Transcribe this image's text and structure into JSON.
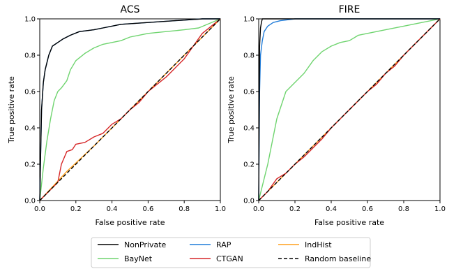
{
  "chart_data": [
    {
      "type": "line",
      "title": "ACS",
      "xlabel": "False positive rate",
      "ylabel": "True positive rate",
      "xlim": [
        0,
        1
      ],
      "ylim": [
        0,
        1
      ],
      "xticks": [
        "0.0",
        "0.2",
        "0.4",
        "0.6",
        "0.8",
        "1.0"
      ],
      "yticks": [
        "0.0",
        "0.2",
        "0.4",
        "0.6",
        "0.8",
        "1.0"
      ],
      "grid": false,
      "series": [
        {
          "name": "NonPrivate",
          "color": "#000000",
          "style": "solid",
          "points": [
            [
              0,
              0
            ],
            [
              0.01,
              0.5
            ],
            [
              0.02,
              0.65
            ],
            [
              0.03,
              0.72
            ],
            [
              0.05,
              0.8
            ],
            [
              0.07,
              0.85
            ],
            [
              0.1,
              0.87
            ],
            [
              0.13,
              0.89
            ],
            [
              0.17,
              0.91
            ],
            [
              0.22,
              0.93
            ],
            [
              0.3,
              0.94
            ],
            [
              0.35,
              0.95
            ],
            [
              0.45,
              0.97
            ],
            [
              0.6,
              0.98
            ],
            [
              0.75,
              0.99
            ],
            [
              0.9,
              1.0
            ],
            [
              1,
              1
            ]
          ]
        },
        {
          "name": "RAP",
          "color": "#1f7bd8",
          "style": "solid",
          "points": [
            [
              0,
              0
            ],
            [
              0.01,
              0.5
            ],
            [
              0.02,
              0.65
            ],
            [
              0.03,
              0.72
            ],
            [
              0.05,
              0.8
            ],
            [
              0.07,
              0.85
            ],
            [
              0.1,
              0.87
            ],
            [
              0.13,
              0.89
            ],
            [
              0.17,
              0.91
            ],
            [
              0.22,
              0.93
            ],
            [
              0.3,
              0.94
            ],
            [
              0.35,
              0.95
            ],
            [
              0.45,
              0.97
            ],
            [
              0.6,
              0.98
            ],
            [
              0.75,
              0.99
            ],
            [
              0.9,
              1.0
            ],
            [
              1,
              1
            ]
          ]
        },
        {
          "name": "IndHist",
          "color": "#ff9f1c",
          "style": "solid",
          "points": [
            [
              0,
              0
            ],
            [
              0.15,
              0.16
            ],
            [
              0.3,
              0.3
            ],
            [
              0.5,
              0.5
            ],
            [
              0.7,
              0.7
            ],
            [
              0.85,
              0.85
            ],
            [
              1,
              1
            ]
          ]
        },
        {
          "name": "BayNet",
          "color": "#6fd46f",
          "style": "solid",
          "points": [
            [
              0,
              0
            ],
            [
              0.02,
              0.18
            ],
            [
              0.04,
              0.33
            ],
            [
              0.06,
              0.45
            ],
            [
              0.08,
              0.55
            ],
            [
              0.1,
              0.6
            ],
            [
              0.12,
              0.62
            ],
            [
              0.15,
              0.66
            ],
            [
              0.17,
              0.72
            ],
            [
              0.2,
              0.77
            ],
            [
              0.25,
              0.81
            ],
            [
              0.3,
              0.84
            ],
            [
              0.35,
              0.86
            ],
            [
              0.4,
              0.87
            ],
            [
              0.45,
              0.88
            ],
            [
              0.5,
              0.9
            ],
            [
              0.55,
              0.91
            ],
            [
              0.6,
              0.92
            ],
            [
              0.7,
              0.93
            ],
            [
              0.8,
              0.94
            ],
            [
              0.88,
              0.95
            ],
            [
              1,
              1
            ]
          ]
        },
        {
          "name": "CTGAN",
          "color": "#d62728",
          "style": "solid",
          "points": [
            [
              0,
              0
            ],
            [
              0.05,
              0.05
            ],
            [
              0.1,
              0.1
            ],
            [
              0.12,
              0.2
            ],
            [
              0.15,
              0.27
            ],
            [
              0.18,
              0.28
            ],
            [
              0.2,
              0.31
            ],
            [
              0.25,
              0.32
            ],
            [
              0.3,
              0.35
            ],
            [
              0.35,
              0.37
            ],
            [
              0.4,
              0.42
            ],
            [
              0.45,
              0.45
            ],
            [
              0.5,
              0.5
            ],
            [
              0.55,
              0.54
            ],
            [
              0.6,
              0.6
            ],
            [
              0.65,
              0.64
            ],
            [
              0.7,
              0.68
            ],
            [
              0.75,
              0.73
            ],
            [
              0.8,
              0.78
            ],
            [
              0.85,
              0.85
            ],
            [
              0.9,
              0.92
            ],
            [
              0.95,
              0.96
            ],
            [
              1,
              1
            ]
          ]
        },
        {
          "name": "Random baseline",
          "color": "#000000",
          "style": "dashed",
          "points": [
            [
              0,
              0
            ],
            [
              1,
              1
            ]
          ]
        }
      ]
    },
    {
      "type": "line",
      "title": "FIRE",
      "xlabel": "False positive rate",
      "ylabel": "True positive rate",
      "xlim": [
        0,
        1
      ],
      "ylim": [
        0,
        1
      ],
      "xticks": [
        "0.0",
        "0.2",
        "0.4",
        "0.6",
        "0.8",
        "1.0"
      ],
      "yticks": [
        "0.0",
        "0.2",
        "0.4",
        "0.6",
        "0.8",
        "1.0"
      ],
      "grid": false,
      "series": [
        {
          "name": "NonPrivate",
          "color": "#000000",
          "style": "solid",
          "points": [
            [
              0,
              0
            ],
            [
              0.003,
              0.5
            ],
            [
              0.005,
              0.85
            ],
            [
              0.01,
              0.95
            ],
            [
              0.015,
              0.98
            ],
            [
              0.02,
              1.0
            ],
            [
              1,
              1
            ]
          ]
        },
        {
          "name": "RAP",
          "color": "#1f7bd8",
          "style": "solid",
          "points": [
            [
              0,
              0
            ],
            [
              0.005,
              0.6
            ],
            [
              0.01,
              0.8
            ],
            [
              0.02,
              0.88
            ],
            [
              0.03,
              0.93
            ],
            [
              0.05,
              0.96
            ],
            [
              0.08,
              0.98
            ],
            [
              0.12,
              0.99
            ],
            [
              0.2,
              1.0
            ],
            [
              1,
              1
            ]
          ]
        },
        {
          "name": "IndHist",
          "color": "#ff9f1c",
          "style": "solid",
          "points": [
            [
              0,
              0
            ],
            [
              0.1,
              0.1
            ],
            [
              0.2,
              0.2
            ],
            [
              0.3,
              0.3
            ],
            [
              0.4,
              0.4
            ],
            [
              0.5,
              0.5
            ],
            [
              0.6,
              0.6
            ],
            [
              0.7,
              0.7
            ],
            [
              0.8,
              0.8
            ],
            [
              0.9,
              0.9
            ],
            [
              1,
              1
            ]
          ]
        },
        {
          "name": "BayNet",
          "color": "#6fd46f",
          "style": "solid",
          "points": [
            [
              0,
              0
            ],
            [
              0.05,
              0.2
            ],
            [
              0.1,
              0.45
            ],
            [
              0.15,
              0.6
            ],
            [
              0.2,
              0.65
            ],
            [
              0.25,
              0.7
            ],
            [
              0.3,
              0.77
            ],
            [
              0.35,
              0.82
            ],
            [
              0.4,
              0.85
            ],
            [
              0.45,
              0.87
            ],
            [
              0.5,
              0.88
            ],
            [
              0.55,
              0.91
            ],
            [
              0.6,
              0.92
            ],
            [
              0.65,
              0.93
            ],
            [
              0.7,
              0.94
            ],
            [
              0.8,
              0.96
            ],
            [
              0.9,
              0.98
            ],
            [
              1,
              1
            ]
          ]
        },
        {
          "name": "CTGAN",
          "color": "#d62728",
          "style": "solid",
          "points": [
            [
              0,
              0
            ],
            [
              0.05,
              0.05
            ],
            [
              0.1,
              0.12
            ],
            [
              0.15,
              0.15
            ],
            [
              0.2,
              0.2
            ],
            [
              0.25,
              0.24
            ],
            [
              0.3,
              0.29
            ],
            [
              0.35,
              0.34
            ],
            [
              0.4,
              0.4
            ],
            [
              0.45,
              0.45
            ],
            [
              0.5,
              0.5
            ],
            [
              0.55,
              0.55
            ],
            [
              0.6,
              0.6
            ],
            [
              0.65,
              0.64
            ],
            [
              0.7,
              0.7
            ],
            [
              0.75,
              0.74
            ],
            [
              0.8,
              0.8
            ],
            [
              0.85,
              0.85
            ],
            [
              0.9,
              0.9
            ],
            [
              0.95,
              0.95
            ],
            [
              1,
              1
            ]
          ]
        },
        {
          "name": "Random baseline",
          "color": "#000000",
          "style": "dashed",
          "points": [
            [
              0,
              0
            ],
            [
              1,
              1
            ]
          ]
        }
      ]
    }
  ],
  "legend": {
    "placement": "bottom-center",
    "columns": 3,
    "entries": [
      {
        "label": "NonPrivate",
        "color": "#000000",
        "style": "solid"
      },
      {
        "label": "RAP",
        "color": "#1f7bd8",
        "style": "solid"
      },
      {
        "label": "IndHist",
        "color": "#ff9f1c",
        "style": "solid"
      },
      {
        "label": "BayNet",
        "color": "#6fd46f",
        "style": "solid"
      },
      {
        "label": "CTGAN",
        "color": "#d62728",
        "style": "solid"
      },
      {
        "label": "Random baseline",
        "color": "#000000",
        "style": "dashed"
      }
    ]
  }
}
